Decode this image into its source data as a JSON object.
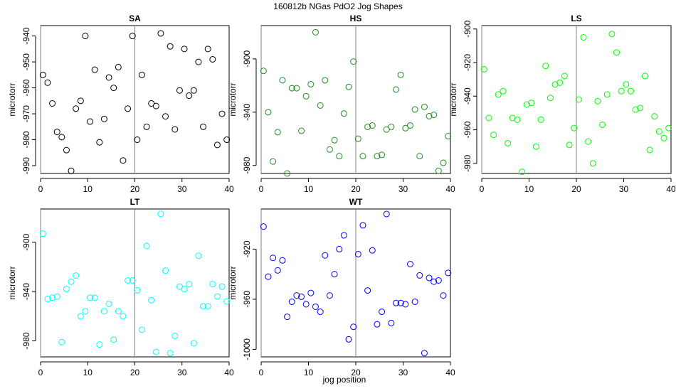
{
  "figure": {
    "title": "160812b   NGas PdO2 Jog Shapes",
    "xlabel": "jog position"
  },
  "chart_data": [
    {
      "type": "scatter",
      "title": "SA",
      "ylabel": "microtorr",
      "color": "#000000",
      "xlim": [
        0,
        40
      ],
      "ylim": [
        -993,
        -936
      ],
      "xticks": [
        0,
        10,
        20,
        30,
        40
      ],
      "yticks": [
        -990,
        -980,
        -970,
        -960,
        -950,
        -940
      ],
      "vline": 20,
      "series": [
        {
          "x": [
            0.5,
            1.5,
            2.5,
            3.5,
            4.5,
            5.5,
            6.5,
            7.5,
            8.5,
            9.5,
            10.5,
            11.5,
            12.5,
            13.5,
            14.5,
            15.5,
            16.5,
            17.5,
            18.5,
            19.5,
            20.5,
            21.5,
            22.5,
            23.5,
            24.5,
            25.5,
            26.5,
            27.5,
            28.5,
            29.5,
            30.5,
            31.5,
            32.5,
            33.5,
            34.5,
            35.5,
            36.5,
            37.5,
            38.5,
            39.5
          ],
          "y": [
            -955,
            -958,
            -966,
            -977,
            -979,
            -984,
            -992,
            -968,
            -965,
            -940,
            -973,
            -953,
            -981,
            -972,
            -956,
            -960,
            -952,
            -988,
            -968,
            -940,
            -980,
            -955,
            -975,
            -966,
            -967,
            -939,
            -971,
            -944,
            -976,
            -961,
            -945,
            -963,
            -961,
            -950,
            -975,
            -945,
            -949,
            -982,
            -970,
            -980
          ]
        }
      ]
    },
    {
      "type": "scatter",
      "title": "HS",
      "ylabel": "microtorr",
      "color": "#228b22",
      "xlim": [
        0,
        40
      ],
      "ylim": [
        -986,
        -875
      ],
      "xticks": [
        0,
        10,
        20,
        30,
        40
      ],
      "yticks": [
        -980,
        -940,
        -900
      ],
      "vline": 20,
      "series": [
        {
          "x": [
            0.5,
            1.5,
            2.5,
            3.5,
            4.5,
            5.5,
            6.5,
            7.5,
            8.5,
            9.5,
            10.5,
            11.5,
            12.5,
            13.5,
            14.5,
            15.5,
            16.5,
            17.5,
            18.5,
            19.5,
            20.5,
            21.5,
            22.5,
            23.5,
            24.5,
            25.5,
            26.5,
            27.5,
            28.5,
            29.5,
            30.5,
            31.5,
            32.5,
            33.5,
            34.5,
            35.5,
            36.5,
            37.5,
            38.5,
            39.5
          ],
          "y": [
            -909,
            -940,
            -977,
            -955,
            -916,
            -986,
            -922,
            -922,
            -954,
            -928,
            -919,
            -880,
            -935,
            -916,
            -968,
            -961,
            -973,
            -941,
            -921,
            -902,
            -960,
            -973,
            -951,
            -950,
            -973,
            -972,
            -953,
            -951,
            -923,
            -912,
            -952,
            -950,
            -938,
            -973,
            -936,
            -943,
            -942,
            -984,
            -978,
            -958
          ]
        }
      ]
    },
    {
      "type": "scatter",
      "title": "LS",
      "ylabel": "microtorr",
      "color": "#00ff00",
      "xlim": [
        0,
        40
      ],
      "ylim": [
        -986,
        -898
      ],
      "xticks": [
        0,
        10,
        20,
        30,
        40
      ],
      "yticks": [
        -980,
        -960,
        -940,
        -920,
        -900
      ],
      "vline": 20,
      "series": [
        {
          "x": [
            0.5,
            1.5,
            2.5,
            3.5,
            4.5,
            5.5,
            6.5,
            7.5,
            8.5,
            9.5,
            10.5,
            11.5,
            12.5,
            13.5,
            14.5,
            15.5,
            16.5,
            17.5,
            18.5,
            19.5,
            20.5,
            21.5,
            22.5,
            23.5,
            24.5,
            25.5,
            26.5,
            27.5,
            28.5,
            29.5,
            30.5,
            31.5,
            32.5,
            33.5,
            34.5,
            35.5,
            36.5,
            37.5,
            38.5,
            39.5
          ],
          "y": [
            -924,
            -953,
            -963,
            -939,
            -937,
            -968,
            -953,
            -954,
            -985,
            -945,
            -944,
            -970,
            -954,
            -922,
            -941,
            -933,
            -932,
            -928,
            -969,
            -959,
            -942,
            -905,
            -967,
            -980,
            -943,
            -957,
            -939,
            -903,
            -914,
            -937,
            -933,
            -937,
            -948,
            -947,
            -928,
            -972,
            -952,
            -961,
            -965,
            -959
          ]
        }
      ]
    },
    {
      "type": "scatter",
      "title": "LT",
      "ylabel": "microtorr",
      "color": "#00ffff",
      "xlim": [
        0,
        40
      ],
      "ylim": [
        -993,
        -873
      ],
      "xticks": [
        0,
        10,
        20,
        30,
        40
      ],
      "yticks": [
        -980,
        -940,
        -900
      ],
      "vline": 20,
      "series": [
        {
          "x": [
            0.5,
            1.5,
            2.5,
            3.5,
            4.5,
            5.5,
            6.5,
            7.5,
            8.5,
            9.5,
            10.5,
            11.5,
            12.5,
            13.5,
            14.5,
            15.5,
            16.5,
            17.5,
            18.5,
            19.5,
            20.5,
            21.5,
            22.5,
            23.5,
            24.5,
            25.5,
            26.5,
            27.5,
            28.5,
            29.5,
            30.5,
            31.5,
            32.5,
            33.5,
            34.5,
            35.5,
            36.5,
            37.5,
            38.5,
            39.5
          ],
          "y": [
            -893,
            -946,
            -945,
            -944,
            -981,
            -938,
            -932,
            -927,
            -960,
            -956,
            -945,
            -945,
            -983,
            -956,
            -950,
            -979,
            -956,
            -960,
            -931,
            -931,
            -939,
            -971,
            -903,
            -947,
            -989,
            -877,
            -923,
            -990,
            -976,
            -936,
            -938,
            -934,
            -982,
            -911,
            -952,
            -952,
            -934,
            -944,
            -936,
            -948
          ]
        }
      ]
    },
    {
      "type": "scatter",
      "title": "WT",
      "ylabel": "microtorr",
      "color": "#0000ff",
      "xlim": [
        0,
        40
      ],
      "ylim": [
        -1006,
        -888
      ],
      "xticks": [
        0,
        10,
        20,
        30,
        40
      ],
      "yticks": [
        -1000,
        -960,
        -920
      ],
      "vline": 20,
      "series": [
        {
          "x": [
            0.5,
            1.5,
            2.5,
            3.5,
            4.5,
            5.5,
            6.5,
            7.5,
            8.5,
            9.5,
            10.5,
            11.5,
            12.5,
            13.5,
            14.5,
            15.5,
            16.5,
            17.5,
            18.5,
            19.5,
            20.5,
            21.5,
            22.5,
            23.5,
            24.5,
            25.5,
            26.5,
            27.5,
            28.5,
            29.5,
            30.5,
            31.5,
            32.5,
            33.5,
            34.5,
            35.5,
            36.5,
            37.5,
            38.5,
            39.5
          ],
          "y": [
            -902,
            -942,
            -927,
            -937,
            -929,
            -974,
            -962,
            -957,
            -958,
            -964,
            -955,
            -966,
            -970,
            -925,
            -957,
            -940,
            -920,
            -909,
            -992,
            -982,
            -924,
            -901,
            -953,
            -921,
            -980,
            -970,
            -892,
            -979,
            -963,
            -963,
            -964,
            -932,
            -962,
            -941,
            -1003,
            -943,
            -946,
            -945,
            -957,
            -939
          ]
        }
      ]
    }
  ]
}
